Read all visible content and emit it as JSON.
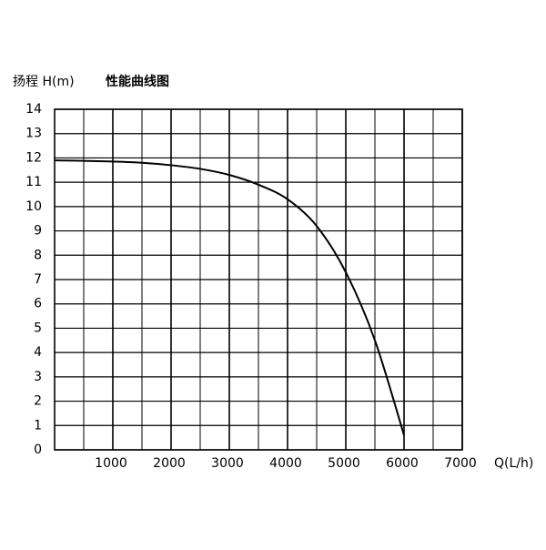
{
  "chart_data": {
    "type": "line",
    "title": "性能曲线图",
    "y_label": "扬程 H(m)",
    "x_label": "Q(L/h)",
    "x": [
      0,
      500,
      1000,
      1500,
      2000,
      2500,
      3000,
      3500,
      4000,
      4500,
      5000,
      5500,
      6000
    ],
    "series": [
      {
        "color": "#000000",
        "values": [
          11.9,
          11.88,
          11.85,
          11.8,
          11.7,
          11.55,
          11.3,
          10.9,
          10.3,
          9.2,
          7.3,
          4.5,
          0.6
        ]
      }
    ],
    "xlim": [
      0,
      7000
    ],
    "ylim": [
      0,
      14
    ],
    "xticks": [
      1000,
      2000,
      3000,
      4000,
      5000,
      6000,
      7000
    ],
    "xminor_ticks": [
      500,
      1500,
      2500,
      3500,
      4500,
      5500,
      6500
    ],
    "yticks": [
      0,
      1,
      2,
      3,
      4,
      5,
      6,
      7,
      8,
      9,
      10,
      11,
      12,
      13,
      14
    ],
    "grid": true
  }
}
